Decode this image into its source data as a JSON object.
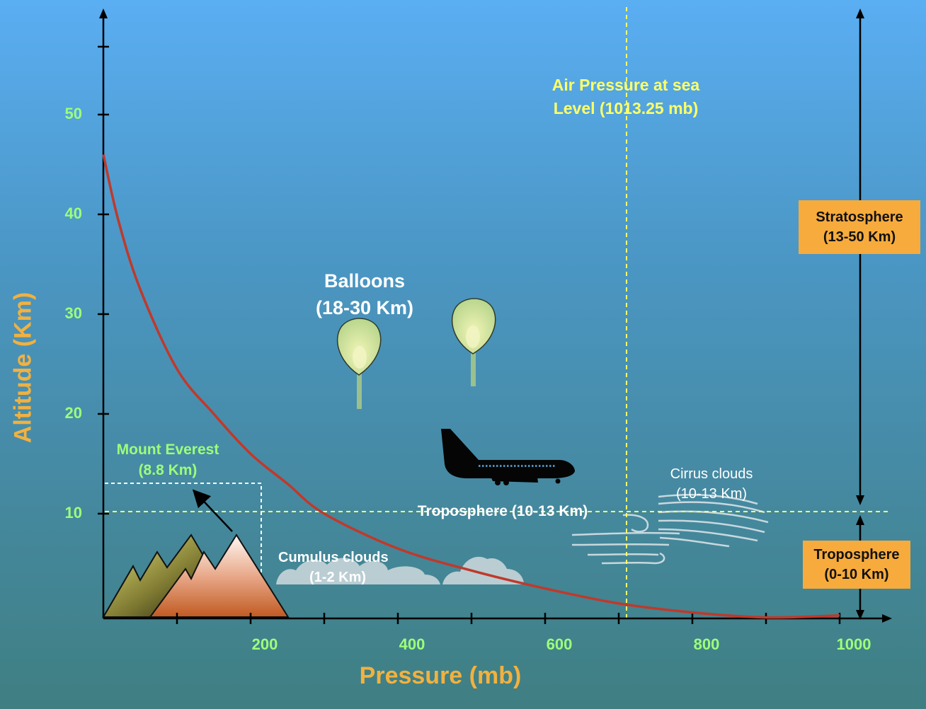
{
  "chart_data": {
    "type": "line",
    "xlabel": "Pressure (mb)",
    "ylabel": "Altitude (Km)",
    "x_ticks": [
      "200",
      "400",
      "600",
      "800",
      "1000"
    ],
    "y_ticks": [
      "10",
      "20",
      "30",
      "40",
      "50"
    ],
    "xlim": [
      0,
      1050
    ],
    "ylim": [
      0,
      55
    ],
    "series": [
      {
        "color": "#c0392b",
        "points": [
          [
            0,
            46.5
          ],
          [
            20,
            40
          ],
          [
            50,
            33
          ],
          [
            100,
            25
          ],
          [
            150,
            20.5
          ],
          [
            200,
            16.5
          ],
          [
            250,
            13.5
          ],
          [
            300,
            10.5
          ],
          [
            400,
            7
          ],
          [
            500,
            4.8
          ],
          [
            600,
            3
          ],
          [
            700,
            1.5
          ],
          [
            800,
            0.6
          ],
          [
            900,
            0.1
          ],
          [
            1000,
            0.3
          ]
        ]
      }
    ]
  },
  "annotations": {
    "sea_level": {
      "line1": "Air Pressure at sea",
      "line2": "Level (1013.25 mb)"
    },
    "balloons": {
      "line1": "Balloons",
      "line2": "(18-30 Km)"
    },
    "everest": {
      "line1": "Mount Everest",
      "line2": "(8.8 Km)"
    },
    "troposphere_line": "Troposphere (10-13 Km)",
    "cirrus": {
      "line1": "Cirrus clouds",
      "line2": "(10-13 Km)"
    },
    "cumulus": {
      "line1": "Cumulus clouds",
      "line2": "(1-2 Km)"
    }
  },
  "layers": {
    "stratosphere": {
      "line1": "Stratosphere",
      "line2": "(13-50 Km)"
    },
    "troposphere": {
      "line1": "Troposphere",
      "line2": "(0-10 Km)"
    }
  },
  "colors": {
    "axis": "#000000",
    "curve": "#c0392b",
    "axis_title": "#f2b13f",
    "tick_labels": "#9dff7a",
    "dashed_lines": "#ffff66",
    "layer_box": "#f7ab3c"
  },
  "icons": [
    "mountains-icon",
    "balloon-icon",
    "airplane-icon",
    "cloud-icon",
    "wind-icon",
    "arrow-icon"
  ]
}
